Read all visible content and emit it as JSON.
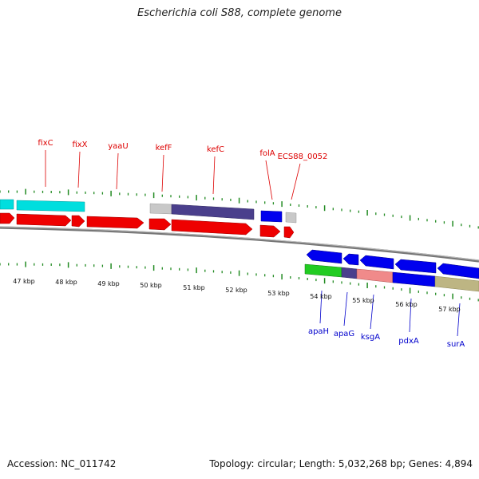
{
  "title": "Escherichia coli S88, complete genome",
  "footer": {
    "accession": "Accession: NC_011742",
    "genome_info": "Topology: circular; Length: 5,032,268 bp; Genes: 4,894"
  },
  "axis": {
    "tick_labels": [
      "47 kbp",
      "48 kbp",
      "49 kbp",
      "50 kbp",
      "51 kbp",
      "52 kbp",
      "53 kbp",
      "54 kbp",
      "55 kbp",
      "56 kbp",
      "57 kbp"
    ]
  },
  "genes_top": [
    "fixC",
    "fixX",
    "yaaU",
    "kefF",
    "kefC",
    "folA",
    "ECS88_0052"
  ],
  "genes_bottom": [
    "apaH",
    "apaG",
    "ksgA",
    "pdxA",
    "surA"
  ],
  "colors": {
    "cog_top": "#00e0e0",
    "cds_red": "#ee0000",
    "cds_blue": "#0000ee",
    "backbone": "#888888",
    "tick_green": "#228b22",
    "label_red": "#dd0000",
    "label_blue": "#0000cc"
  }
}
